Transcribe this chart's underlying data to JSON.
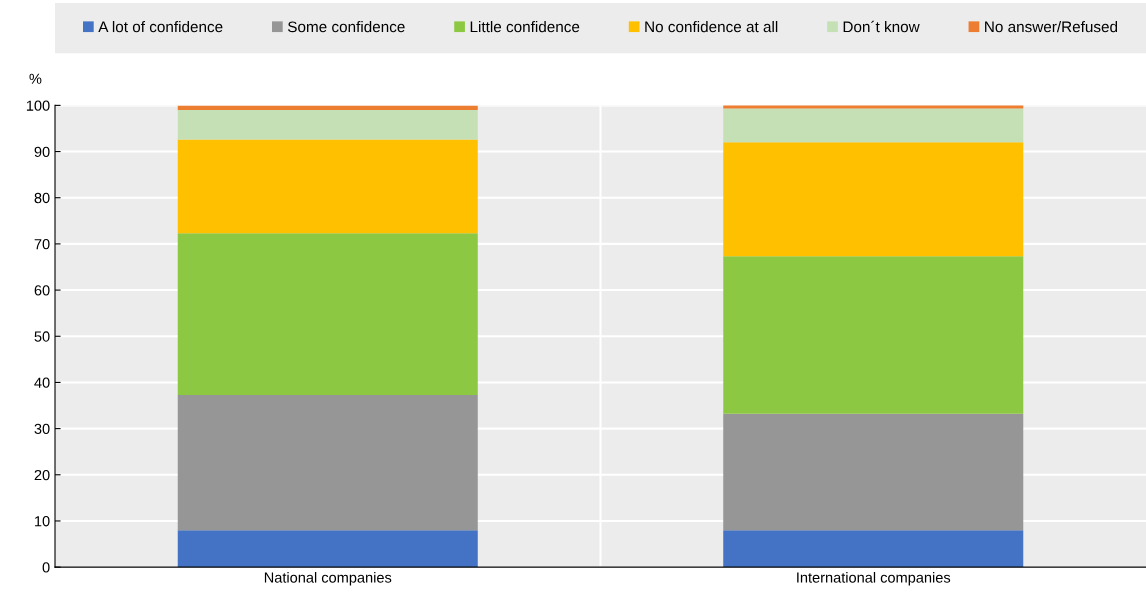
{
  "chart_data": {
    "type": "bar",
    "stacked": true,
    "ylabel": "%",
    "categories": [
      "National companies",
      "International companies"
    ],
    "series": [
      {
        "name": "A lot of confidence",
        "color": "#4472c4",
        "values": [
          8,
          8
        ]
      },
      {
        "name": "Some confidence",
        "color": "#969696",
        "values": [
          29.3,
          25.2
        ]
      },
      {
        "name": "Little confidence",
        "color": "#8cc841",
        "values": [
          35,
          34.1
        ]
      },
      {
        "name": "No confidence at all",
        "color": "#ffc000",
        "values": [
          20.3,
          24.7
        ]
      },
      {
        "name": "Don´t know",
        "color": "#c5e0b4",
        "values": [
          6.4,
          7.3
        ]
      },
      {
        "name": "No answer/Refused",
        "color": "#ed7d31",
        "values": [
          1,
          0.8
        ]
      }
    ],
    "ylim": [
      0,
      100
    ],
    "yticks": [
      0,
      10,
      20,
      30,
      40,
      50,
      60,
      70,
      80,
      90,
      100
    ],
    "grid": "y",
    "legend": "top"
  }
}
